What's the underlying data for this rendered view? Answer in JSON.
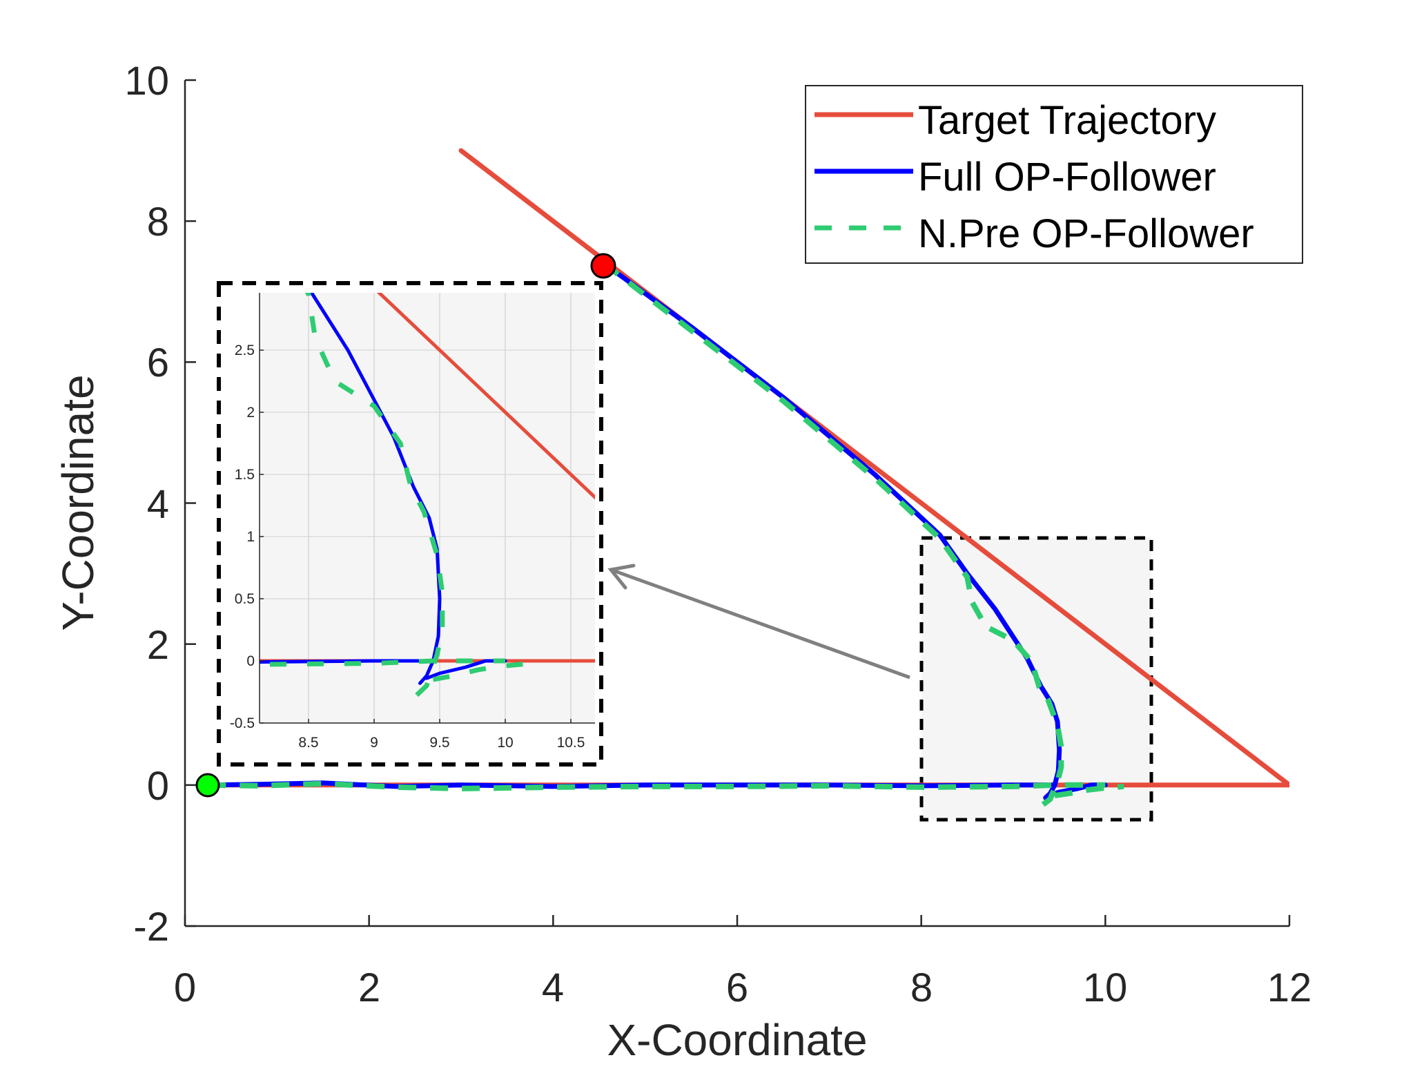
{
  "chart_data": {
    "type": "line",
    "title": "",
    "xlabel": "X-Coordinate",
    "ylabel": "Y-Coordinate",
    "xlim": [
      0,
      12
    ],
    "ylim": [
      -2,
      10
    ],
    "xticks": [
      0,
      2,
      4,
      6,
      8,
      10,
      12
    ],
    "yticks": [
      -2,
      0,
      2,
      4,
      6,
      8,
      10
    ],
    "grid": false,
    "legend_position": "upper right",
    "legend": [
      {
        "label": "Target Trajectory",
        "color": "#e64c3c",
        "style": "solid"
      },
      {
        "label": "Full OP-Follower",
        "color": "#0000ff",
        "style": "solid"
      },
      {
        "label": "N.Pre OP-Follower",
        "color": "#2ecc71",
        "style": "dashed"
      }
    ],
    "series": [
      {
        "name": "Target Trajectory",
        "color": "#e64c3c",
        "style": "solid",
        "segments": [
          [
            [
              3,
              9
            ],
            [
              12,
              0
            ]
          ],
          [
            [
              0.25,
              0
            ],
            [
              12,
              0
            ]
          ]
        ]
      },
      {
        "name": "Full OP-Follower",
        "color": "#0000ff",
        "style": "solid",
        "segments": [
          [
            [
              4.55,
              7.4
            ],
            [
              5.5,
              6.5
            ],
            [
              6.5,
              5.5
            ],
            [
              7.5,
              4.4
            ],
            [
              8.2,
              3.55
            ],
            [
              8.5,
              3.0
            ],
            [
              8.8,
              2.5
            ],
            [
              9.0,
              2.1
            ],
            [
              9.15,
              1.8
            ],
            [
              9.3,
              1.4
            ],
            [
              9.42,
              1.15
            ],
            [
              9.48,
              0.9
            ],
            [
              9.5,
              0.5
            ],
            [
              9.49,
              0.2
            ],
            [
              9.45,
              0.0
            ],
            [
              9.4,
              -0.12
            ],
            [
              9.35,
              -0.18
            ]
          ],
          [
            [
              0.25,
              0
            ],
            [
              0.8,
              0.01
            ],
            [
              1.5,
              0.03
            ],
            [
              2.3,
              -0.02
            ],
            [
              3.0,
              0.0
            ],
            [
              4.0,
              -0.02
            ],
            [
              5.0,
              0.0
            ],
            [
              6.0,
              0.0
            ],
            [
              7.0,
              0.0
            ],
            [
              8.0,
              -0.01
            ],
            [
              9.0,
              0.0
            ],
            [
              9.45,
              0.0
            ]
          ],
          [
            [
              9.4,
              -0.14
            ],
            [
              9.5,
              -0.1
            ],
            [
              9.7,
              -0.05
            ],
            [
              9.85,
              0.0
            ],
            [
              10.0,
              0.0
            ]
          ]
        ]
      },
      {
        "name": "N.Pre OP-Follower",
        "color": "#2ecc71",
        "style": "dashed",
        "segments": [
          [
            [
              4.55,
              7.4
            ],
            [
              5.5,
              6.45
            ],
            [
              6.5,
              5.45
            ],
            [
              7.5,
              4.35
            ],
            [
              8.2,
              3.5
            ],
            [
              8.5,
              2.95
            ],
            [
              8.55,
              2.6
            ],
            [
              8.7,
              2.25
            ],
            [
              9.0,
              2.05
            ],
            [
              9.2,
              1.75
            ],
            [
              9.28,
              1.4
            ],
            [
              9.38,
              1.2
            ],
            [
              9.48,
              0.85
            ],
            [
              9.52,
              0.55
            ],
            [
              9.52,
              0.25
            ],
            [
              9.48,
              0.05
            ],
            [
              9.4,
              -0.2
            ],
            [
              9.25,
              -0.35
            ]
          ],
          [
            [
              0.25,
              0
            ],
            [
              0.8,
              -0.01
            ],
            [
              1.5,
              0.02
            ],
            [
              2.3,
              -0.03
            ],
            [
              3.0,
              -0.05
            ],
            [
              4.0,
              -0.03
            ],
            [
              5.0,
              -0.02
            ],
            [
              6.0,
              -0.02
            ],
            [
              7.0,
              -0.01
            ],
            [
              8.0,
              -0.03
            ],
            [
              9.0,
              -0.02
            ],
            [
              9.45,
              0.0
            ],
            [
              9.8,
              0.0
            ],
            [
              10.0,
              0.0
            ]
          ],
          [
            [
              9.45,
              -0.15
            ],
            [
              9.6,
              -0.12
            ],
            [
              9.8,
              -0.07
            ],
            [
              10.0,
              -0.04
            ],
            [
              10.2,
              -0.02
            ]
          ]
        ]
      }
    ],
    "markers": [
      {
        "name": "start",
        "x": 0.25,
        "y": 0,
        "color": "#00ff00"
      },
      {
        "name": "target-start",
        "x": 4.55,
        "y": 7.4,
        "color": "#ff0000"
      }
    ],
    "zoom_region": {
      "xlim": [
        8,
        10.5
      ],
      "ylim": [
        -0.5,
        3.5
      ]
    },
    "inset": {
      "xlim": [
        8.15,
        10.68
      ],
      "ylim": [
        -0.5,
        2.95
      ],
      "xticks": [
        8.5,
        9,
        9.5,
        10,
        10.5
      ],
      "xtick_labels": [
        "8.5",
        "9",
        "9.5",
        "10",
        "10.5"
      ],
      "yticks": [
        -0.5,
        0,
        0.5,
        1,
        1.5,
        2,
        2.5
      ],
      "ytick_labels": [
        "-0.5",
        "0",
        "0.5",
        "1",
        "1.5",
        "2",
        "2.5"
      ],
      "grid": true,
      "background": "#f5f5f5"
    },
    "annotation": {
      "type": "arrow",
      "from": "zoom-region",
      "to": "inset",
      "color": "#808080"
    }
  },
  "axes": {
    "xtick_labels": [
      "0",
      "2",
      "4",
      "6",
      "8",
      "10",
      "12"
    ],
    "ytick_labels": [
      "-2",
      "0",
      "2",
      "4",
      "6",
      "8",
      "10"
    ],
    "xlabel": "X-Coordinate",
    "ylabel": "Y-Coordinate"
  },
  "legend": {
    "items": [
      {
        "label": "Target Trajectory"
      },
      {
        "label": "Full OP-Follower"
      },
      {
        "label": "N.Pre OP-Follower"
      }
    ]
  }
}
